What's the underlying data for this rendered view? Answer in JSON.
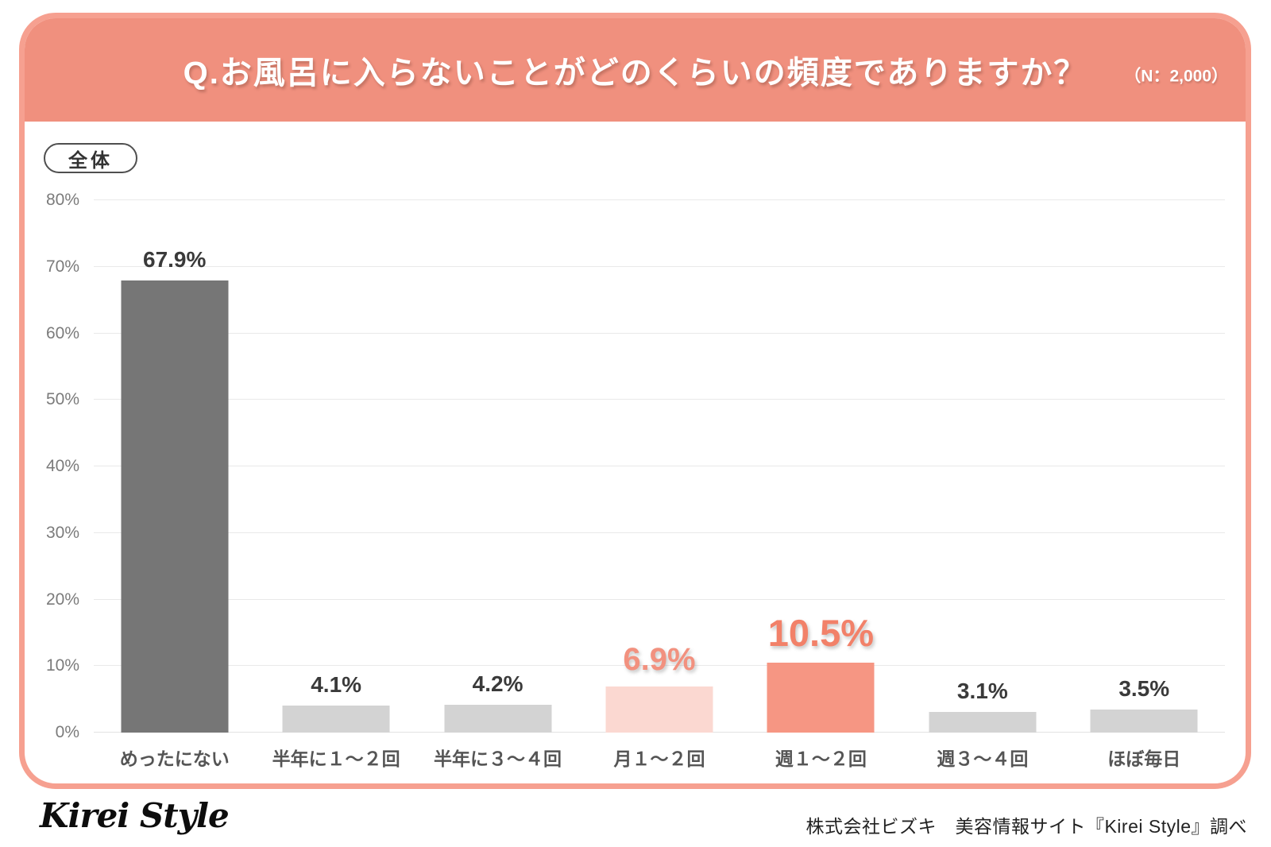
{
  "header": {
    "title": "Q.お風呂に入らないことがどのくらいの頻度でありますか？",
    "sample_size": "（N：2,000）",
    "bg_color": "#f0907e",
    "border_color": "#f6a090"
  },
  "badge": {
    "label": "全体"
  },
  "chart_data": {
    "type": "bar",
    "title": "Q.お風呂に入らないことがどのくらいの頻度でありますか？",
    "sample_n": "2,000",
    "categories": [
      "めったにない",
      "半年に１～２回",
      "半年に３～４回",
      "月１～２回",
      "週１～２回",
      "週３～４回",
      "ほぼ毎日"
    ],
    "values": [
      67.9,
      4.1,
      4.2,
      6.9,
      10.5,
      3.1,
      3.5
    ],
    "value_labels": [
      "67.9%",
      "4.1%",
      "4.2%",
      "6.9%",
      "10.5%",
      "3.1%",
      "3.5%"
    ],
    "ylim": [
      0,
      80
    ],
    "yticks": [
      "0%",
      "10%",
      "20%",
      "30%",
      "40%",
      "50%",
      "60%",
      "70%",
      "80%"
    ],
    "grid": true,
    "legend": "none",
    "xlabel": "",
    "ylabel": "",
    "bar_styles": [
      {
        "bar_color": "#767676",
        "label_color": "#3a3a3a",
        "label_size": 28,
        "accent": false
      },
      {
        "bar_color": "#d3d3d3",
        "label_color": "#3a3a3a",
        "label_size": 28,
        "accent": false
      },
      {
        "bar_color": "#d3d3d3",
        "label_color": "#3a3a3a",
        "label_size": 28,
        "accent": false
      },
      {
        "bar_color": "#fbd8d1",
        "label_color": "#f2917f",
        "label_size": 40,
        "accent": true
      },
      {
        "bar_color": "#f69683",
        "label_color": "#f28169",
        "label_size": 47,
        "accent": true
      },
      {
        "bar_color": "#d3d3d3",
        "label_color": "#3a3a3a",
        "label_size": 28,
        "accent": false
      },
      {
        "bar_color": "#d3d3d3",
        "label_color": "#3a3a3a",
        "label_size": 28,
        "accent": false
      }
    ],
    "grid_color": "#e9e9e9",
    "axis_text_color": "#7b7b7b"
  },
  "footer": {
    "logo": "Kirei Style",
    "credit": "株式会社ビズキ　美容情報サイト『Kirei Style』調べ"
  }
}
